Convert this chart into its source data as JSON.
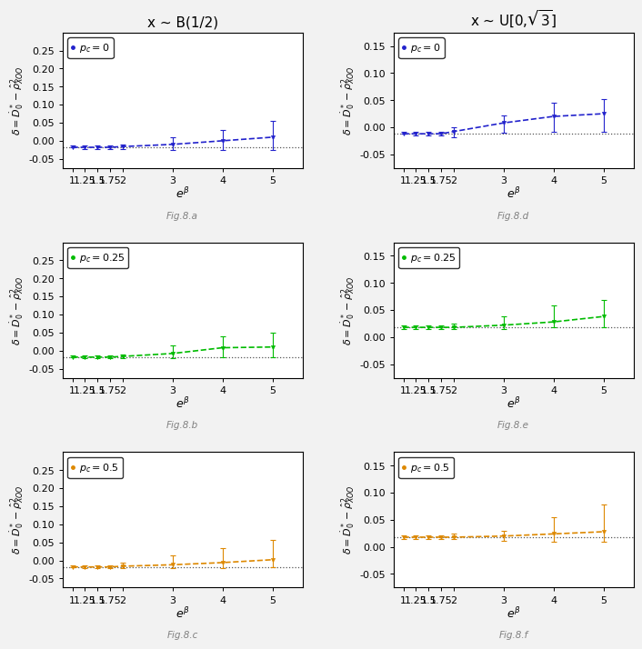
{
  "col_titles": [
    "x ~ B(1/2)",
    "x ~ U[0,√3]"
  ],
  "fig_labels_left": [
    "Fig.8.a",
    "Fig.8.b",
    "Fig.8.c"
  ],
  "fig_labels_right": [
    "Fig.8.d",
    "Fig.8.e",
    "Fig.8.f"
  ],
  "x_ticks": [
    1,
    1.25,
    1.5,
    1.75,
    2,
    3,
    4,
    5
  ],
  "x_tick_labels": [
    "1",
    "1.25",
    "1.5",
    "1.75",
    "2",
    "3",
    "4",
    "5"
  ],
  "panels": [
    {
      "mean": [
        -0.018,
        -0.018,
        -0.018,
        -0.018,
        -0.016,
        -0.01,
        0.0,
        0.01
      ],
      "upper": [
        -0.013,
        -0.013,
        -0.013,
        -0.013,
        -0.01,
        0.01,
        0.03,
        0.055
      ],
      "lower": [
        -0.018,
        -0.022,
        -0.022,
        -0.022,
        -0.022,
        -0.025,
        -0.025,
        -0.025
      ],
      "ref": -0.018,
      "color": "#2222cc",
      "ylim": [
        -0.075,
        0.3
      ],
      "yticks": [
        -0.05,
        0.0,
        0.05,
        0.1,
        0.15,
        0.2,
        0.25
      ],
      "pc_label": "0",
      "fig_label": "Fig.8.a",
      "col": 0
    },
    {
      "mean": [
        -0.018,
        -0.018,
        -0.018,
        -0.018,
        -0.016,
        -0.008,
        0.008,
        0.01
      ],
      "upper": [
        -0.013,
        -0.013,
        -0.013,
        -0.013,
        -0.01,
        0.015,
        0.04,
        0.05
      ],
      "lower": [
        -0.018,
        -0.022,
        -0.022,
        -0.022,
        -0.022,
        -0.022,
        -0.018,
        -0.018
      ],
      "ref": -0.018,
      "color": "#00bb00",
      "ylim": [
        -0.075,
        0.3
      ],
      "yticks": [
        -0.05,
        0.0,
        0.05,
        0.1,
        0.15,
        0.2,
        0.25
      ],
      "pc_label": "0.25",
      "fig_label": "Fig.8.b",
      "col": 0
    },
    {
      "mean": [
        -0.018,
        -0.018,
        -0.018,
        -0.018,
        -0.016,
        -0.012,
        -0.006,
        0.002
      ],
      "upper": [
        -0.013,
        -0.013,
        -0.013,
        -0.013,
        -0.006,
        0.015,
        0.035,
        0.058
      ],
      "lower": [
        -0.018,
        -0.022,
        -0.022,
        -0.022,
        -0.022,
        -0.022,
        -0.02,
        -0.018
      ],
      "ref": -0.018,
      "color": "#dd8800",
      "ylim": [
        -0.075,
        0.3
      ],
      "yticks": [
        -0.05,
        0.0,
        0.05,
        0.1,
        0.15,
        0.2,
        0.25
      ],
      "pc_label": "0.5",
      "fig_label": "Fig.8.c",
      "col": 0
    },
    {
      "mean": [
        -0.012,
        -0.012,
        -0.012,
        -0.012,
        -0.008,
        0.008,
        0.02,
        0.025
      ],
      "upper": [
        -0.008,
        -0.008,
        -0.008,
        -0.008,
        0.0,
        0.022,
        0.045,
        0.052
      ],
      "lower": [
        -0.012,
        -0.015,
        -0.015,
        -0.015,
        -0.018,
        -0.01,
        -0.008,
        -0.008
      ],
      "ref": -0.012,
      "color": "#2222cc",
      "ylim": [
        -0.075,
        0.175
      ],
      "yticks": [
        -0.05,
        0.0,
        0.05,
        0.1,
        0.15
      ],
      "pc_label": "0",
      "fig_label": "Fig.8.d",
      "col": 1
    },
    {
      "mean": [
        0.018,
        0.018,
        0.018,
        0.018,
        0.018,
        0.022,
        0.028,
        0.038
      ],
      "upper": [
        0.022,
        0.022,
        0.022,
        0.022,
        0.025,
        0.038,
        0.058,
        0.068
      ],
      "lower": [
        0.014,
        0.014,
        0.014,
        0.014,
        0.014,
        0.014,
        0.018,
        0.018
      ],
      "ref": 0.018,
      "color": "#00bb00",
      "ylim": [
        -0.075,
        0.175
      ],
      "yticks": [
        -0.05,
        0.0,
        0.05,
        0.1,
        0.15
      ],
      "pc_label": "0.25",
      "fig_label": "Fig.8.e",
      "col": 1
    },
    {
      "mean": [
        0.018,
        0.018,
        0.018,
        0.018,
        0.018,
        0.02,
        0.024,
        0.028
      ],
      "upper": [
        0.022,
        0.022,
        0.022,
        0.022,
        0.024,
        0.03,
        0.055,
        0.078
      ],
      "lower": [
        0.014,
        0.014,
        0.014,
        0.014,
        0.014,
        0.012,
        0.01,
        0.01
      ],
      "ref": 0.018,
      "color": "#dd8800",
      "ylim": [
        -0.075,
        0.175
      ],
      "yticks": [
        -0.05,
        0.0,
        0.05,
        0.1,
        0.15
      ],
      "pc_label": "0.5",
      "fig_label": "Fig.8.f",
      "col": 1
    }
  ],
  "bg_color": "#f2f2f2",
  "title_fontsize": 11,
  "tick_fontsize": 8,
  "label_fontsize": 8,
  "xlabel_fontsize": 9
}
